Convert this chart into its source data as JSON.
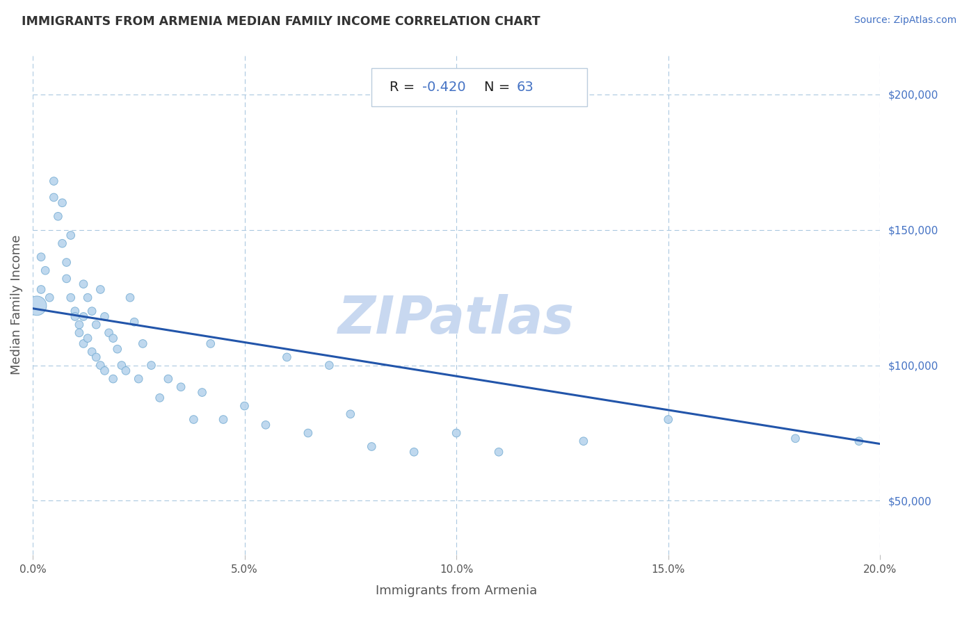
{
  "title": "IMMIGRANTS FROM ARMENIA MEDIAN FAMILY INCOME CORRELATION CHART",
  "source": "Source: ZipAtlas.com",
  "xlabel": "Immigrants from Armenia",
  "ylabel": "Median Family Income",
  "r_value": -0.42,
  "n_value": 63,
  "r_color": "#4472C4",
  "label_color": "#555555",
  "title_color": "#333333",
  "watermark": "ZIPatlas",
  "watermark_color": "#c8d8f0",
  "scatter_color": "#b8d4ed",
  "scatter_edge_color": "#7aafd4",
  "line_color": "#2255aa",
  "background_color": "#ffffff",
  "grid_color": "#aac8e0",
  "xlim": [
    0.0,
    0.2
  ],
  "ylim": [
    30000,
    215000
  ],
  "xticks": [
    0.0,
    0.05,
    0.1,
    0.15,
    0.2
  ],
  "yticks": [
    50000,
    100000,
    150000,
    200000
  ],
  "ytick_labels": [
    "$50,000",
    "$100,000",
    "$150,000",
    "$200,000"
  ],
  "xtick_labels": [
    "0.0%",
    "5.0%",
    "10.0%",
    "15.0%",
    "20.0%"
  ],
  "scatter_x": [
    0.001,
    0.002,
    0.002,
    0.003,
    0.004,
    0.005,
    0.005,
    0.006,
    0.007,
    0.007,
    0.008,
    0.008,
    0.009,
    0.009,
    0.01,
    0.01,
    0.011,
    0.011,
    0.012,
    0.012,
    0.012,
    0.013,
    0.013,
    0.014,
    0.014,
    0.015,
    0.015,
    0.016,
    0.016,
    0.017,
    0.017,
    0.018,
    0.019,
    0.019,
    0.02,
    0.021,
    0.022,
    0.023,
    0.024,
    0.025,
    0.026,
    0.028,
    0.03,
    0.032,
    0.035,
    0.038,
    0.04,
    0.042,
    0.045,
    0.05,
    0.055,
    0.06,
    0.065,
    0.07,
    0.075,
    0.08,
    0.09,
    0.1,
    0.11,
    0.13,
    0.15,
    0.18,
    0.195
  ],
  "scatter_y": [
    122000,
    140000,
    128000,
    135000,
    125000,
    168000,
    162000,
    155000,
    160000,
    145000,
    138000,
    132000,
    148000,
    125000,
    120000,
    118000,
    115000,
    112000,
    130000,
    118000,
    108000,
    125000,
    110000,
    120000,
    105000,
    115000,
    103000,
    128000,
    100000,
    118000,
    98000,
    112000,
    110000,
    95000,
    106000,
    100000,
    98000,
    125000,
    116000,
    95000,
    108000,
    100000,
    88000,
    95000,
    92000,
    80000,
    90000,
    108000,
    80000,
    85000,
    78000,
    103000,
    75000,
    100000,
    82000,
    70000,
    68000,
    75000,
    68000,
    72000,
    80000,
    73000,
    72000
  ],
  "scatter_sizes": [
    400,
    70,
    70,
    70,
    70,
    70,
    70,
    70,
    70,
    70,
    70,
    70,
    70,
    70,
    70,
    70,
    70,
    70,
    70,
    70,
    70,
    70,
    70,
    70,
    70,
    70,
    70,
    70,
    70,
    70,
    70,
    70,
    70,
    70,
    70,
    70,
    70,
    70,
    70,
    70,
    70,
    70,
    70,
    70,
    70,
    70,
    70,
    70,
    70,
    70,
    70,
    70,
    70,
    70,
    70,
    70,
    70,
    70,
    70,
    70,
    70,
    70,
    70
  ],
  "line_x": [
    0.0,
    0.2
  ],
  "line_y": [
    121000,
    71000
  ],
  "figsize": [
    14.06,
    8.92
  ],
  "dpi": 100
}
